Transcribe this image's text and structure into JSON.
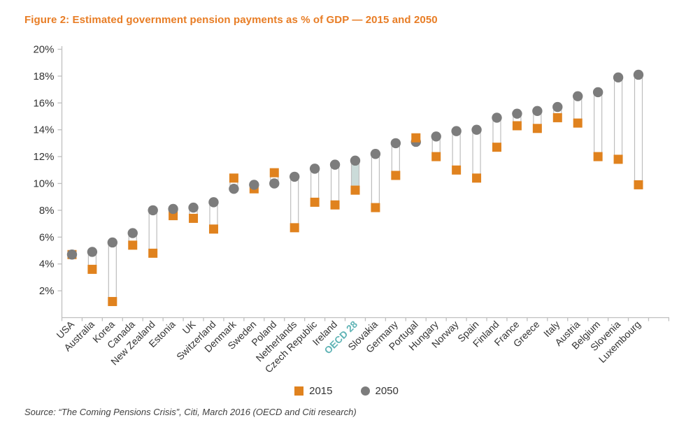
{
  "title": "Figure 2: Estimated government pension payments as % of GDP — 2015 and 2050",
  "source": "Source: “The Coming Pensions Crisis”, Citi, March 2016 (OECD and Citi research)",
  "colors": {
    "title_orange": "#e87d25",
    "marker_2015_orange": "#e0821e",
    "marker_2050_gray": "#7c7c7c",
    "range_bar_stroke": "#bdbdbd",
    "range_bar_fill": "#ffffff",
    "axis_line": "#bfbfbf",
    "axis_text": "#333333",
    "highlight_fill": "#cbdbd9",
    "highlight_label": "#5fb3b5"
  },
  "chart_data": {
    "type": "scatter",
    "variant": "dumbbell-range",
    "title": "Figure 2: Estimated government pension payments as % of GDP — 2015 and 2050",
    "xlabel": "",
    "ylabel": "",
    "ylabel_format": "percent",
    "ylim": [
      0,
      20
    ],
    "yticks": [
      2,
      4,
      6,
      8,
      10,
      12,
      14,
      16,
      18,
      20
    ],
    "grid": false,
    "legend_position": "bottom-center",
    "highlight_category": "OECD 28",
    "categories": [
      "USA",
      "Australia",
      "Korea",
      "Canada",
      "New Zealand",
      "Estonia",
      "UK",
      "Switzerland",
      "Denmark",
      "Sweden",
      "Poland",
      "Netherlands",
      "Czech Republic",
      "Ireland",
      "OECD 28",
      "Slovakia",
      "Germany",
      "Portugal",
      "Hungary",
      "Norway",
      "Spain",
      "Finland",
      "France",
      "Greece",
      "Italy",
      "Austria",
      "Belgium",
      "Slovenia",
      "Luxembourg"
    ],
    "series": [
      {
        "name": "2015",
        "marker": "square",
        "color": "#e0821e",
        "values": [
          4.7,
          3.6,
          1.2,
          5.4,
          4.8,
          7.6,
          7.4,
          6.6,
          10.4,
          9.6,
          10.8,
          6.7,
          8.6,
          8.4,
          9.5,
          8.2,
          10.6,
          13.4,
          12.0,
          11.0,
          10.4,
          12.7,
          14.3,
          14.1,
          14.9,
          14.5,
          12.0,
          11.8,
          9.9
        ]
      },
      {
        "name": "2050",
        "marker": "circle",
        "color": "#7c7c7c",
        "values": [
          4.7,
          4.9,
          5.6,
          6.3,
          8.0,
          8.1,
          8.2,
          8.6,
          9.6,
          9.9,
          10.0,
          10.5,
          11.1,
          11.4,
          11.7,
          12.2,
          13.0,
          13.1,
          13.5,
          13.9,
          14.0,
          14.9,
          15.2,
          15.4,
          15.7,
          16.5,
          16.8,
          17.9,
          18.1
        ]
      }
    ]
  }
}
